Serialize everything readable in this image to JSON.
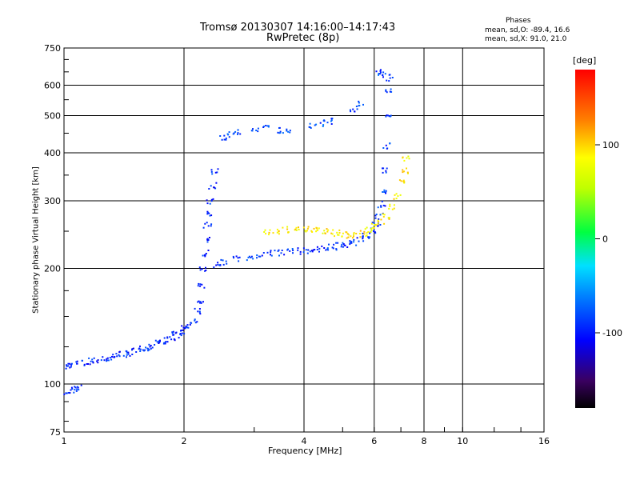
{
  "title_line1": "Tromsø 20130307 14:16:00–14:17:43",
  "title_line2": "RwPretec (8p)",
  "stats": {
    "heading": "Phases",
    "o_line": "mean, sd,O: -89.4, 16.6",
    "x_line": "mean, sd,X:  91.0, 21.0"
  },
  "chart_data": {
    "type": "scatter",
    "xlabel": "Frequency [MHz]",
    "ylabel": "Stationary phase Virtual Height [km]",
    "x_scale": "log",
    "y_scale": "log",
    "xlim": [
      1,
      16
    ],
    "ylim": [
      75,
      750
    ],
    "x_ticks": [
      1,
      2,
      4,
      6,
      8,
      10,
      16
    ],
    "y_ticks": [
      75,
      100,
      200,
      300,
      400,
      500,
      600,
      750
    ],
    "grid": true,
    "colorbar": {
      "label": "[deg]",
      "range": [
        -180,
        180
      ],
      "ticks": [
        -100,
        0,
        100
      ]
    },
    "traces": [
      {
        "name_hint": "O-mode low (Es/E)",
        "phase": -95,
        "points": [
          [
            1.02,
            96
          ],
          [
            1.05,
            97
          ],
          [
            1.08,
            98
          ],
          [
            1.02,
            112
          ],
          [
            1.05,
            113
          ],
          [
            1.1,
            114
          ],
          [
            1.15,
            115
          ],
          [
            1.2,
            116
          ],
          [
            1.25,
            117
          ],
          [
            1.3,
            118
          ],
          [
            1.35,
            119
          ],
          [
            1.4,
            120
          ],
          [
            1.45,
            121
          ],
          [
            1.5,
            122
          ],
          [
            1.55,
            124
          ],
          [
            1.6,
            125
          ],
          [
            1.65,
            126
          ],
          [
            1.7,
            128
          ],
          [
            1.75,
            129
          ],
          [
            1.8,
            131
          ],
          [
            1.85,
            133
          ],
          [
            1.9,
            135
          ],
          [
            1.95,
            137
          ],
          [
            2.0,
            140
          ],
          [
            2.05,
            143
          ],
          [
            2.1,
            147
          ],
          [
            2.15,
            155
          ],
          [
            2.18,
            165
          ],
          [
            2.2,
            180
          ],
          [
            2.22,
            200
          ],
          [
            2.24,
            220
          ],
          [
            2.26,
            240
          ],
          [
            2.28,
            260
          ],
          [
            2.3,
            280
          ],
          [
            2.32,
            300
          ],
          [
            2.35,
            330
          ],
          [
            2.38,
            360
          ]
        ]
      },
      {
        "name_hint": "O-mode F trace",
        "phase": -90,
        "points": [
          [
            2.4,
            205
          ],
          [
            2.5,
            208
          ],
          [
            2.7,
            212
          ],
          [
            2.9,
            215
          ],
          [
            3.1,
            218
          ],
          [
            3.3,
            220
          ],
          [
            3.5,
            221
          ],
          [
            3.7,
            222
          ],
          [
            3.9,
            223
          ],
          [
            4.1,
            224
          ],
          [
            4.3,
            225
          ],
          [
            4.5,
            226
          ],
          [
            4.7,
            228
          ],
          [
            4.9,
            230
          ],
          [
            5.1,
            232
          ],
          [
            5.3,
            235
          ],
          [
            5.5,
            239
          ],
          [
            5.7,
            244
          ],
          [
            5.9,
            252
          ],
          [
            6.05,
            262
          ],
          [
            6.15,
            275
          ],
          [
            6.25,
            295
          ],
          [
            6.32,
            320
          ],
          [
            6.38,
            360
          ],
          [
            6.43,
            420
          ],
          [
            6.47,
            500
          ],
          [
            6.5,
            580
          ],
          [
            6.52,
            630
          ]
        ]
      },
      {
        "name_hint": "X-mode F trace",
        "phase": 90,
        "points": [
          [
            3.2,
            250
          ],
          [
            3.4,
            252
          ],
          [
            3.6,
            253
          ],
          [
            3.8,
            254
          ],
          [
            4.0,
            254
          ],
          [
            4.2,
            253
          ],
          [
            4.4,
            252
          ],
          [
            4.6,
            250
          ],
          [
            4.8,
            248
          ],
          [
            5.0,
            246
          ],
          [
            5.2,
            245
          ],
          [
            5.4,
            246
          ],
          [
            5.6,
            248
          ],
          [
            5.8,
            252
          ],
          [
            6.0,
            258
          ],
          [
            6.2,
            265
          ],
          [
            6.4,
            275
          ],
          [
            6.6,
            290
          ],
          [
            6.8,
            310
          ],
          [
            7.0,
            335
          ],
          [
            7.1,
            360
          ],
          [
            7.2,
            390
          ]
        ]
      },
      {
        "name_hint": "upper F echoes",
        "phase": -85,
        "points": [
          [
            2.5,
            440
          ],
          [
            2.6,
            450
          ],
          [
            2.7,
            455
          ],
          [
            3.0,
            465
          ],
          [
            3.2,
            470
          ],
          [
            3.4,
            460
          ],
          [
            3.6,
            455
          ],
          [
            4.2,
            470
          ],
          [
            4.4,
            480
          ],
          [
            4.6,
            485
          ],
          [
            5.3,
            520
          ],
          [
            5.5,
            540
          ],
          [
            6.1,
            650
          ],
          [
            6.3,
            640
          ]
        ]
      }
    ]
  }
}
